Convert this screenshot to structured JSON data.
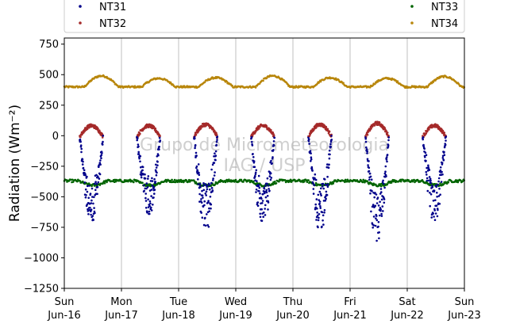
{
  "chart_data": {
    "type": "scatter",
    "ylabel": "Radiation (Wm⁻²)",
    "ylim": [
      -1250,
      800
    ],
    "yticks": [
      750,
      500,
      250,
      0,
      -250,
      -500,
      -750,
      -1000,
      -1250
    ],
    "xlim": [
      0,
      7
    ],
    "xticks": [
      {
        "x": 0,
        "day": "Sun",
        "date": "Jun-16"
      },
      {
        "x": 1,
        "day": "Mon",
        "date": "Jun-17"
      },
      {
        "x": 2,
        "day": "Tue",
        "date": "Jun-18"
      },
      {
        "x": 3,
        "day": "Wed",
        "date": "Jun-19"
      },
      {
        "x": 4,
        "day": "Thu",
        "date": "Jun-20"
      },
      {
        "x": 5,
        "day": "Fri",
        "date": "Jun-21"
      },
      {
        "x": 6,
        "day": "Sat",
        "date": "Jun-22"
      },
      {
        "x": 7,
        "day": "Sun",
        "date": "Jun-23"
      }
    ],
    "grid": "vertical",
    "legend_position": "top",
    "watermark": [
      "Grupo de Micrometeorologia",
      "IAG / USP"
    ],
    "series": [
      {
        "name": "NT31",
        "color": "#00008b"
      },
      {
        "name": "NT32",
        "color": "#a52a2a"
      },
      {
        "name": "NT33",
        "color": "#006400"
      },
      {
        "name": "NT34",
        "color": "#b8860b"
      }
    ],
    "daily_minima_NT31": [
      {
        "day": "Jun-16",
        "min": -700
      },
      {
        "day": "Jun-17",
        "min": -640
      },
      {
        "day": "Jun-18",
        "min": -750
      },
      {
        "day": "Jun-19",
        "min": -740
      },
      {
        "day": "Jun-20",
        "min": -750
      },
      {
        "day": "Jun-21",
        "min": -860
      },
      {
        "day": "Jun-22",
        "min": -690
      }
    ],
    "daily_peaks_NT32": [
      {
        "day": "Jun-16",
        "max": 90
      },
      {
        "day": "Jun-17",
        "max": 90
      },
      {
        "day": "Jun-18",
        "max": 100
      },
      {
        "day": "Jun-19",
        "max": 90
      },
      {
        "day": "Jun-20",
        "max": 100
      },
      {
        "day": "Jun-21",
        "max": 110
      },
      {
        "day": "Jun-22",
        "max": 90
      }
    ],
    "NT33_baseline": -370,
    "NT34_baseline": 400,
    "NT34_daily_peaks": [
      {
        "day": "Jun-16",
        "max": 490
      },
      {
        "day": "Jun-17",
        "max": 470
      },
      {
        "day": "Jun-18",
        "max": 475
      },
      {
        "day": "Jun-19",
        "max": 490
      },
      {
        "day": "Jun-20",
        "max": 475
      },
      {
        "day": "Jun-21",
        "max": 470
      },
      {
        "day": "Jun-22",
        "max": 485
      }
    ]
  }
}
